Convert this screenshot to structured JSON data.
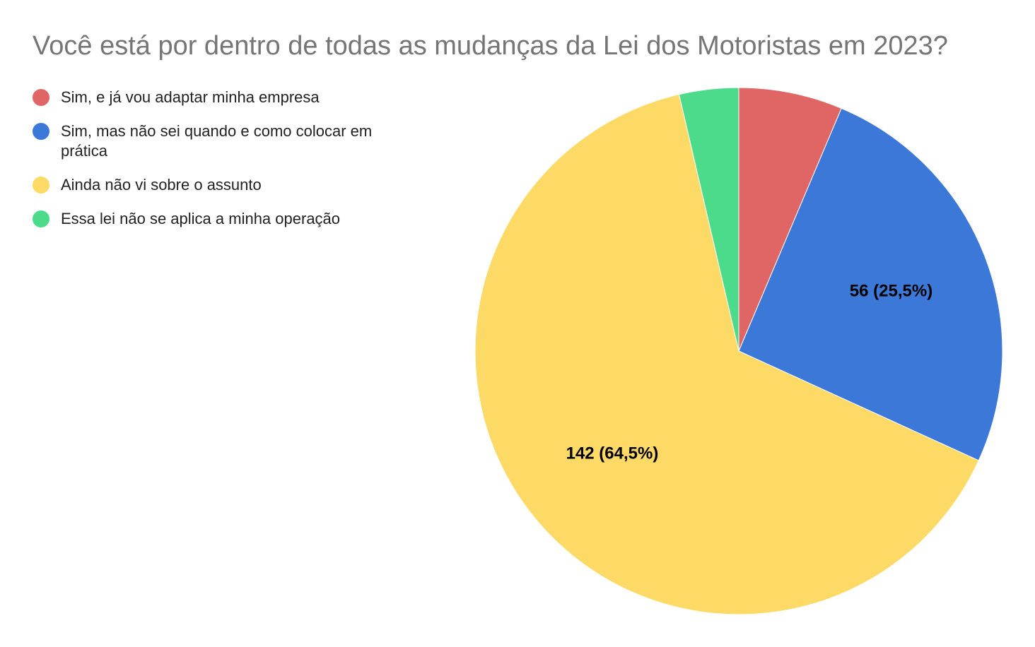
{
  "chart_data": {
    "type": "pie",
    "title": "Você está por dentro de todas as mudanças da Lei dos Motoristas em 2023?",
    "legend_position": "left",
    "categories": [
      "Sim, e já vou adaptar minha empresa",
      "Sim, mas não sei quando e como colocar em prática",
      "Ainda não vi sobre o assunto",
      "Essa lei não se aplica a minha operação"
    ],
    "values": [
      14,
      56,
      142,
      8
    ],
    "colors": [
      "#E06666",
      "#3C78D8",
      "#FDD966",
      "#4CDB8A"
    ],
    "data_labels": [
      "",
      "56 (25,5%)",
      "142 (64,5%)",
      ""
    ]
  }
}
